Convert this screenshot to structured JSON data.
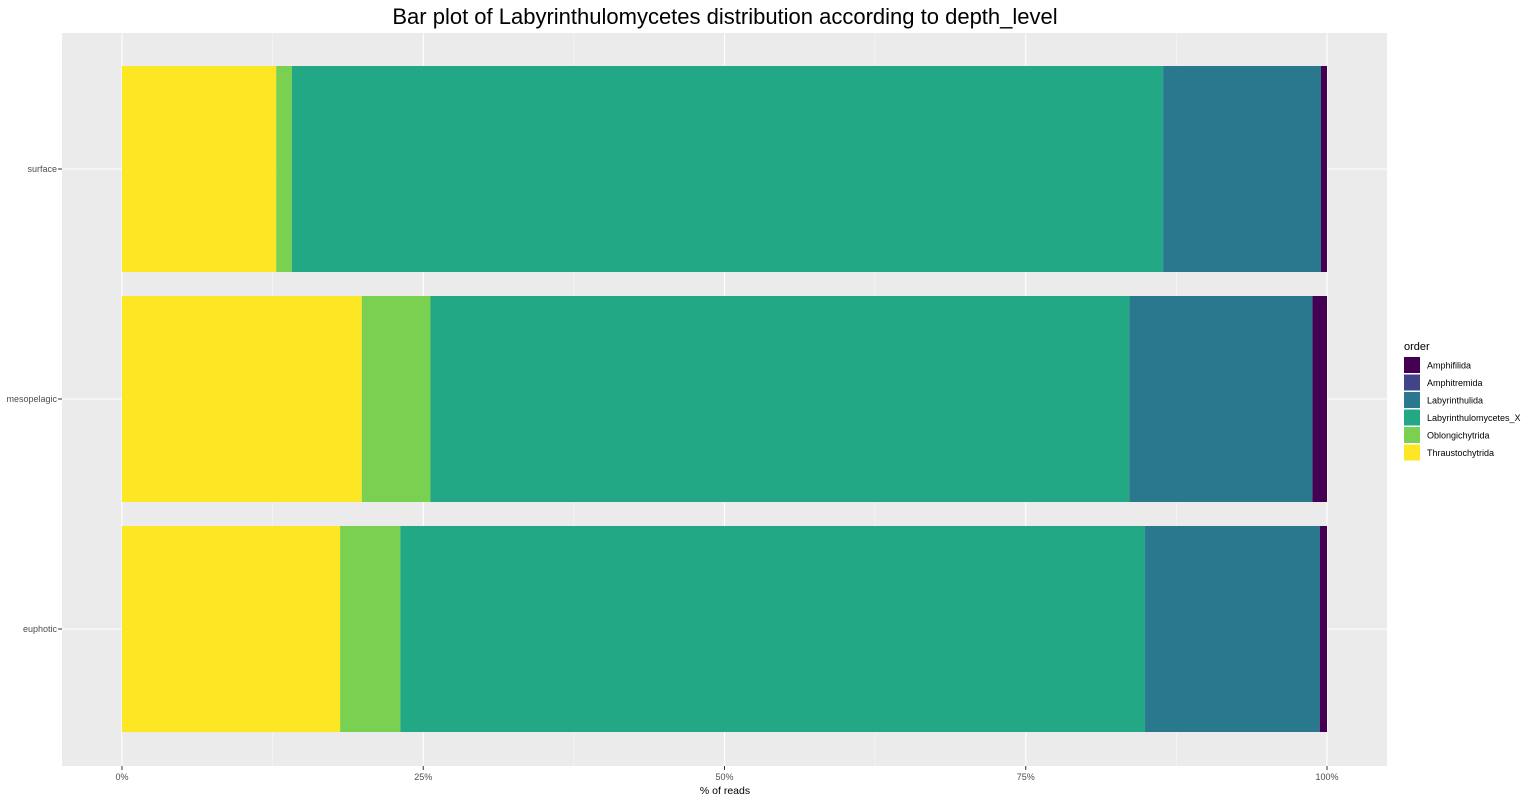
{
  "chart_data": {
    "type": "bar",
    "orientation": "horizontal",
    "stacked": true,
    "title": "Bar plot of Labyrinthulomycetes distribution according to depth_level",
    "xlabel": "% of reads",
    "ylabel": "",
    "xlim": [
      0,
      1
    ],
    "x_ticks": [
      "0%",
      "25%",
      "50%",
      "75%",
      "100%"
    ],
    "categories": [
      "surface",
      "mesopelagic",
      "euphotic"
    ],
    "legend_title": "order",
    "legend_position": "right",
    "grid": true,
    "series": [
      {
        "name": "Thraustochytrida",
        "color": "#FDE725",
        "values": [
          0.128,
          0.199,
          0.181
        ]
      },
      {
        "name": "Oblongichytrida",
        "color": "#7AD151",
        "values": [
          0.013,
          0.057,
          0.05
        ]
      },
      {
        "name": "Labyrinthulomycetes_X",
        "color": "#22A884",
        "values": [
          0.723,
          0.58,
          0.618
        ]
      },
      {
        "name": "Labyrinthulida",
        "color": "#2A788E",
        "values": [
          0.131,
          0.152,
          0.145
        ]
      },
      {
        "name": "Amphitremida",
        "color": "#414487",
        "values": [
          0.0,
          0.0,
          0.0
        ]
      },
      {
        "name": "Amphifilida",
        "color": "#440154",
        "values": [
          0.005,
          0.012,
          0.006
        ]
      }
    ],
    "legend_order": [
      "Amphifilida",
      "Amphitremida",
      "Labyrinthulida",
      "Labyrinthulomycetes_X",
      "Oblongichytrida",
      "Thraustochytrida"
    ]
  }
}
